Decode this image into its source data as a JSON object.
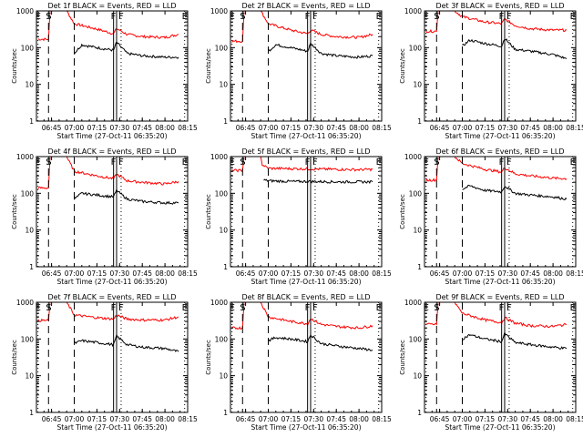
{
  "colors": {
    "events": "#000000",
    "lld": "#ff0000",
    "axes": "#000000",
    "background": "#ffffff"
  },
  "chart_data": [
    {
      "panel": "1f",
      "type": "line",
      "title": "Det 1f BLACK = Events, RED = LLD",
      "xlabel": "Start Time (27-Oct-11 06:35:20)",
      "ylabel": "Counts/sec",
      "yscale": "log",
      "ylim": [
        1,
        1000
      ],
      "xlim": [
        "06:35",
        "08:15"
      ],
      "x_ticks": [
        "06:45",
        "07:00",
        "07:15",
        "07:30",
        "07:45",
        "08:00",
        "08:15"
      ],
      "y_ticks": [
        "1",
        "10",
        "100",
        "1000"
      ],
      "markers": [
        "E",
        "S",
        "F",
        "F",
        "E"
      ],
      "series": [
        {
          "color": "red",
          "times": [
            "06:36",
            "06:43",
            "06:44",
            "06:55",
            "07:00",
            "07:15",
            "07:26",
            "07:28",
            "07:35",
            "07:45",
            "08:00",
            "08:09"
          ],
          "values": [
            170,
            170,
            1000,
            1000,
            450,
            320,
            240,
            330,
            230,
            200,
            190,
            230
          ]
        },
        {
          "color": "black",
          "times": [
            "07:00",
            "07:05",
            "07:15",
            "07:26",
            "07:28",
            "07:35",
            "07:45",
            "08:00",
            "08:09"
          ],
          "values": [
            70,
            120,
            100,
            85,
            140,
            70,
            60,
            55,
            55
          ]
        }
      ]
    },
    {
      "panel": "2f",
      "type": "line",
      "title": "Det 2f BLACK = Events, RED = LLD",
      "xlabel": "Start Time (27-Oct-11 06:35:20)",
      "ylabel": "Counts/sec",
      "yscale": "log",
      "ylim": [
        1,
        1000
      ],
      "xlim": [
        "06:35",
        "08:15"
      ],
      "x_ticks": [
        "06:45",
        "07:00",
        "07:15",
        "07:30",
        "07:45",
        "08:00",
        "08:15"
      ],
      "y_ticks": [
        "1",
        "10",
        "100",
        "1000"
      ],
      "markers": [
        "E",
        "S",
        "F",
        "F",
        "E"
      ],
      "series": [
        {
          "color": "red",
          "times": [
            "06:36",
            "06:43",
            "06:44",
            "06:55",
            "07:00",
            "07:15",
            "07:26",
            "07:28",
            "07:35",
            "07:45",
            "08:00",
            "08:09"
          ],
          "values": [
            150,
            150,
            1000,
            1000,
            450,
            300,
            240,
            300,
            230,
            200,
            190,
            230
          ]
        },
        {
          "color": "black",
          "times": [
            "07:00",
            "07:05",
            "07:15",
            "07:26",
            "07:28",
            "07:35",
            "07:45",
            "08:00",
            "08:09"
          ],
          "values": [
            80,
            120,
            100,
            80,
            130,
            70,
            60,
            55,
            60
          ]
        }
      ]
    },
    {
      "panel": "3f",
      "type": "line",
      "title": "Det 3f BLACK = Events, RED = LLD",
      "xlabel": "Start Time (27-Oct-11 06:35:20)",
      "ylabel": "Counts/sec",
      "yscale": "log",
      "ylim": [
        1,
        1000
      ],
      "xlim": [
        "06:35",
        "08:15"
      ],
      "x_ticks": [
        "06:45",
        "07:00",
        "07:15",
        "07:30",
        "07:45",
        "08:00",
        "08:15"
      ],
      "y_ticks": [
        "1",
        "10",
        "100",
        "1000"
      ],
      "markers": [
        "E",
        "S",
        "F",
        "F",
        "E"
      ],
      "series": [
        {
          "color": "red",
          "times": [
            "06:36",
            "06:43",
            "06:44",
            "06:55",
            "07:00",
            "07:15",
            "07:26",
            "07:28",
            "07:35",
            "07:45",
            "08:00",
            "08:09"
          ],
          "values": [
            280,
            280,
            1000,
            1000,
            700,
            500,
            450,
            600,
            400,
            330,
            300,
            300
          ]
        },
        {
          "color": "black",
          "times": [
            "07:00",
            "07:05",
            "07:15",
            "07:26",
            "07:28",
            "07:35",
            "07:45",
            "08:00",
            "08:09"
          ],
          "values": [
            110,
            160,
            130,
            110,
            180,
            90,
            80,
            65,
            50
          ]
        }
      ]
    },
    {
      "panel": "4f",
      "type": "line",
      "title": "Det 4f BLACK = Events, RED = LLD",
      "xlabel": "Start Time (27-Oct-11 06:35:20)",
      "ylabel": "Counts/sec",
      "yscale": "log",
      "ylim": [
        1,
        1000
      ],
      "xlim": [
        "06:35",
        "08:15"
      ],
      "x_ticks": [
        "06:45",
        "07:00",
        "07:15",
        "07:30",
        "07:45",
        "08:00",
        "08:15"
      ],
      "y_ticks": [
        "1",
        "10",
        "100",
        "1000"
      ],
      "markers": [
        "E",
        "S",
        "F",
        "F",
        "E"
      ],
      "series": [
        {
          "color": "red",
          "times": [
            "06:36",
            "06:43",
            "06:44",
            "06:55",
            "07:00",
            "07:15",
            "07:26",
            "07:28",
            "07:35",
            "07:45",
            "08:00",
            "08:09"
          ],
          "values": [
            140,
            140,
            1000,
            1000,
            400,
            300,
            250,
            330,
            220,
            200,
            180,
            210
          ]
        },
        {
          "color": "black",
          "times": [
            "07:00",
            "07:05",
            "07:15",
            "07:26",
            "07:28",
            "07:35",
            "07:45",
            "08:00",
            "08:09"
          ],
          "values": [
            70,
            100,
            90,
            80,
            120,
            70,
            60,
            55,
            55
          ]
        }
      ]
    },
    {
      "panel": "5f",
      "type": "line",
      "title": "Det 5f BLACK = Events, RED = LLD",
      "xlabel": "Start Time (27-Oct-11 06:35:20)",
      "ylabel": "Counts/sec",
      "yscale": "log",
      "ylim": [
        1,
        1000
      ],
      "xlim": [
        "06:35",
        "08:15"
      ],
      "x_ticks": [
        "06:45",
        "07:00",
        "07:15",
        "07:30",
        "07:45",
        "08:00",
        "08:15"
      ],
      "y_ticks": [
        "1",
        "10",
        "100",
        "1000"
      ],
      "markers": [
        "E",
        "S",
        "F",
        "F",
        "E"
      ],
      "series": [
        {
          "color": "red",
          "times": [
            "06:36",
            "06:43",
            "06:44",
            "06:55",
            "06:56",
            "07:00",
            "07:15",
            "07:30",
            "07:45",
            "08:00",
            "08:09"
          ],
          "values": [
            420,
            420,
            1000,
            1000,
            600,
            480,
            470,
            460,
            450,
            440,
            450
          ]
        },
        {
          "color": "black",
          "times": [
            "06:57",
            "07:00",
            "07:15",
            "07:30",
            "07:45",
            "08:00",
            "08:09"
          ],
          "values": [
            230,
            220,
            210,
            210,
            205,
            205,
            205
          ]
        }
      ]
    },
    {
      "panel": "6f",
      "type": "line",
      "title": "Det 6f BLACK = Events, RED = LLD",
      "xlabel": "Start Time (27-Oct-11 06:35:20)",
      "ylabel": "Counts/sec",
      "yscale": "log",
      "ylim": [
        1,
        1000
      ],
      "xlim": [
        "06:35",
        "08:15"
      ],
      "x_ticks": [
        "06:45",
        "07:00",
        "07:15",
        "07:30",
        "07:45",
        "08:00",
        "08:15"
      ],
      "y_ticks": [
        "1",
        "10",
        "100",
        "1000"
      ],
      "markers": [
        "E",
        "S",
        "F",
        "F",
        "E"
      ],
      "series": [
        {
          "color": "red",
          "times": [
            "06:36",
            "06:43",
            "06:44",
            "06:55",
            "07:00",
            "07:15",
            "07:26",
            "07:28",
            "07:35",
            "07:45",
            "08:00",
            "08:09"
          ],
          "values": [
            230,
            230,
            1000,
            1000,
            650,
            450,
            380,
            500,
            340,
            300,
            260,
            250
          ]
        },
        {
          "color": "black",
          "times": [
            "07:00",
            "07:05",
            "07:15",
            "07:26",
            "07:28",
            "07:35",
            "07:45",
            "08:00",
            "08:09"
          ],
          "values": [
            130,
            160,
            120,
            110,
            160,
            100,
            90,
            80,
            70
          ]
        }
      ]
    },
    {
      "panel": "7f",
      "type": "line",
      "title": "Det 7f BLACK = Events, RED = LLD",
      "xlabel": "Start Time (27-Oct-11 06:35:20)",
      "ylabel": "Counts/sec",
      "yscale": "log",
      "ylim": [
        1,
        1000
      ],
      "xlim": [
        "06:35",
        "08:15"
      ],
      "x_ticks": [
        "06:45",
        "07:00",
        "07:15",
        "07:30",
        "07:45",
        "08:00",
        "08:15"
      ],
      "y_ticks": [
        "1",
        "10",
        "100",
        "1000"
      ],
      "markers": [
        "E",
        "S",
        "F",
        "F",
        "E"
      ],
      "series": [
        {
          "color": "red",
          "times": [
            "06:36",
            "06:43",
            "06:44",
            "06:55",
            "07:00",
            "07:15",
            "07:26",
            "07:28",
            "07:35",
            "07:45",
            "08:00",
            "08:09"
          ],
          "values": [
            320,
            320,
            1000,
            1000,
            450,
            380,
            350,
            450,
            350,
            330,
            330,
            400
          ]
        },
        {
          "color": "black",
          "times": [
            "07:00",
            "07:05",
            "07:15",
            "07:26",
            "07:28",
            "07:35",
            "07:45",
            "08:00",
            "08:09"
          ],
          "values": [
            75,
            90,
            80,
            70,
            120,
            70,
            60,
            55,
            45
          ]
        }
      ]
    },
    {
      "panel": "8f",
      "type": "line",
      "title": "Det 8f BLACK = Events, RED = LLD",
      "xlabel": "Start Time (27-Oct-11 06:35:20)",
      "ylabel": "Counts/sec",
      "yscale": "log",
      "ylim": [
        1,
        1000
      ],
      "xlim": [
        "06:35",
        "08:15"
      ],
      "x_ticks": [
        "06:45",
        "07:00",
        "07:15",
        "07:30",
        "07:45",
        "08:00",
        "08:15"
      ],
      "y_ticks": [
        "1",
        "10",
        "100",
        "1000"
      ],
      "markers": [
        "E",
        "S",
        "F",
        "F",
        "E"
      ],
      "series": [
        {
          "color": "red",
          "times": [
            "06:36",
            "06:43",
            "06:44",
            "06:55",
            "07:00",
            "07:15",
            "07:26",
            "07:28",
            "07:35",
            "07:45",
            "08:00",
            "08:09"
          ],
          "values": [
            200,
            200,
            1000,
            1000,
            400,
            300,
            260,
            360,
            250,
            220,
            200,
            230
          ]
        },
        {
          "color": "black",
          "times": [
            "07:00",
            "07:05",
            "07:15",
            "07:26",
            "07:28",
            "07:35",
            "07:45",
            "08:00",
            "08:09"
          ],
          "values": [
            90,
            110,
            100,
            85,
            130,
            75,
            65,
            55,
            50
          ]
        }
      ]
    },
    {
      "panel": "9f",
      "type": "line",
      "title": "Det 9f BLACK = Events, RED = LLD",
      "xlabel": "Start Time (27-Oct-11 06:35:20)",
      "ylabel": "Counts/sec",
      "yscale": "log",
      "ylim": [
        1,
        1000
      ],
      "xlim": [
        "06:35",
        "08:15"
      ],
      "x_ticks": [
        "06:45",
        "07:00",
        "07:15",
        "07:30",
        "07:45",
        "08:00",
        "08:15"
      ],
      "y_ticks": [
        "1",
        "10",
        "100",
        "1000"
      ],
      "markers": [
        "E",
        "S",
        "F",
        "F",
        "E"
      ],
      "series": [
        {
          "color": "red",
          "times": [
            "06:36",
            "06:43",
            "06:44",
            "06:55",
            "07:00",
            "07:15",
            "07:26",
            "07:28",
            "07:35",
            "07:45",
            "08:00",
            "08:09"
          ],
          "values": [
            250,
            250,
            1000,
            1000,
            500,
            330,
            280,
            380,
            270,
            230,
            220,
            250
          ]
        },
        {
          "color": "black",
          "times": [
            "07:00",
            "07:05",
            "07:15",
            "07:26",
            "07:28",
            "07:35",
            "07:45",
            "08:00",
            "08:09"
          ],
          "values": [
            100,
            130,
            100,
            85,
            140,
            80,
            70,
            60,
            55
          ]
        }
      ]
    }
  ]
}
